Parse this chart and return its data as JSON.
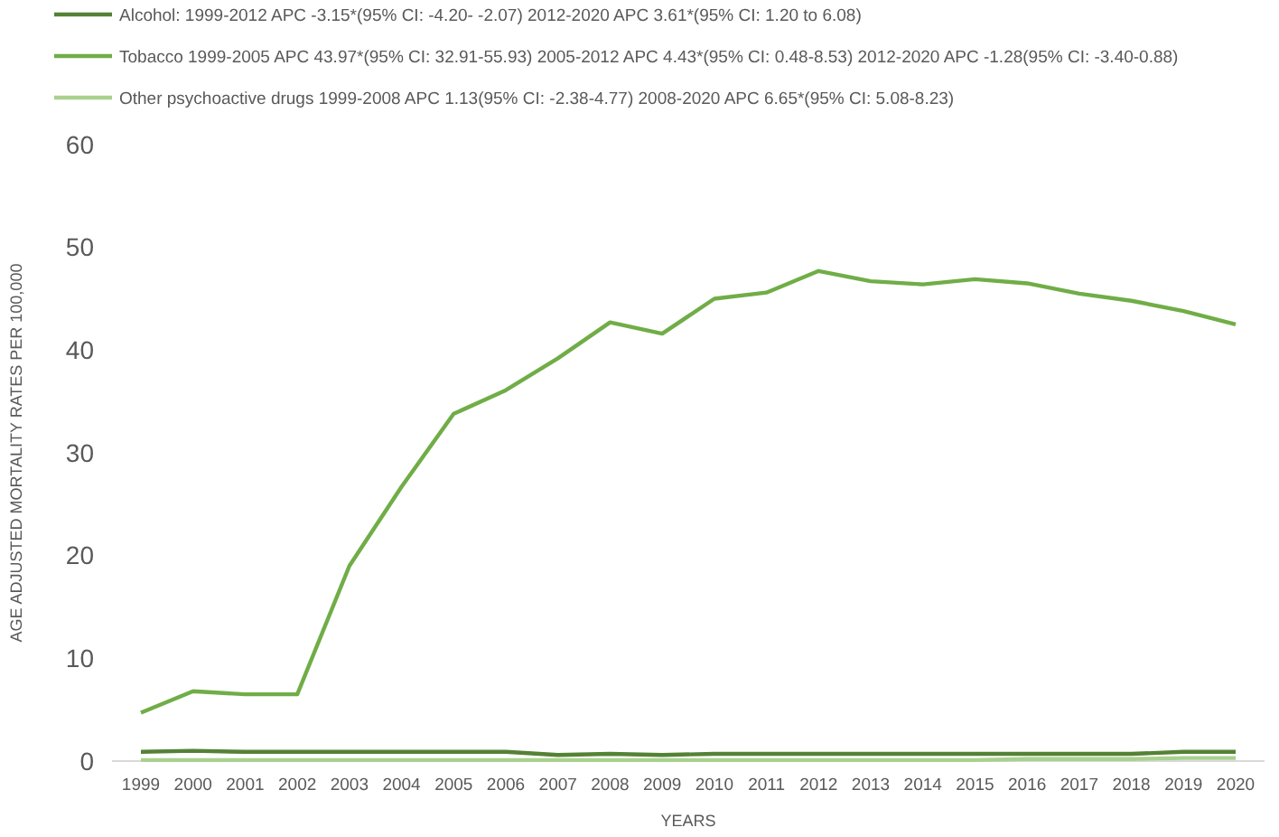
{
  "chart_data": {
    "type": "line",
    "xlabel": "YEARS",
    "ylabel": "AGE ADJUSTED MORTALITY RATES PER 100,000",
    "categories": [
      "1999",
      "2000",
      "2001",
      "2002",
      "2003",
      "2004",
      "2005",
      "2006",
      "2007",
      "2008",
      "2009",
      "2010",
      "2011",
      "2012",
      "2013",
      "2014",
      "2015",
      "2016",
      "2017",
      "2018",
      "2019",
      "2020"
    ],
    "series": [
      {
        "name": "Alcohol: 1999-2012 APC -3.15*(95% CI: -4.20- -2.07) 2012-2020 APC 3.61*(95% CI: 1.20 to 6.08)",
        "color": "#548235",
        "values": [
          0.9,
          1.0,
          0.9,
          0.9,
          0.9,
          0.9,
          0.9,
          0.9,
          0.6,
          0.7,
          0.6,
          0.7,
          0.7,
          0.7,
          0.7,
          0.7,
          0.7,
          0.7,
          0.7,
          0.7,
          0.9,
          0.9
        ]
      },
      {
        "name": "Tobacco 1999-2005 APC 43.97*(95% CI: 32.91-55.93) 2005-2012 APC 4.43*(95% CI: 0.48-8.53) 2012-2020 APC -1.28(95% CI: -3.40-0.88)",
        "color": "#70ad47",
        "values": [
          4.7,
          6.8,
          6.5,
          6.5,
          19,
          26.7,
          33.8,
          36.1,
          39.2,
          42.7,
          41.6,
          45,
          45.6,
          47.7,
          46.7,
          46.4,
          46.9,
          46.5,
          45.5,
          44.8,
          43.8,
          42.5
        ]
      },
      {
        "name": "Other psychoactive drugs 1999-2008 APC 1.13(95% CI: -2.38-4.77) 2008-2020 APC 6.65*(95% CI: 5.08-8.23)",
        "color": "#a9d18e",
        "values": [
          0.1,
          0.1,
          0.1,
          0.1,
          0.1,
          0.1,
          0.1,
          0.1,
          0.1,
          0.1,
          0.1,
          0.1,
          0.1,
          0.1,
          0.1,
          0.1,
          0.1,
          0.2,
          0.2,
          0.2,
          0.3,
          0.3
        ]
      }
    ],
    "ylim": [
      0,
      60
    ],
    "yticks": [
      0,
      10,
      20,
      30,
      40,
      50,
      60
    ],
    "legend": "top left",
    "grid": false,
    "marker": "none",
    "line_style": "solid"
  }
}
